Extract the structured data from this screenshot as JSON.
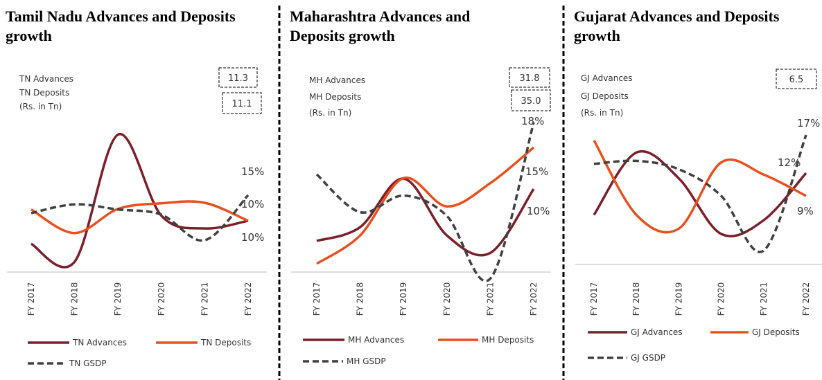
{
  "chart_data": [
    {
      "type": "line",
      "title": "Tamil Nadu Advances and Deposits growth",
      "annotations": [
        {
          "label": "TN Advances",
          "value": 11.3
        },
        {
          "label": "TN Deposits",
          "value": 11.1
        }
      ],
      "unit": "(Rs. in Tn)",
      "categories": [
        "FY 2017",
        "FY 2018",
        "FY 2019",
        "FY 2020",
        "FY 2021",
        "FY 2022"
      ],
      "ylim": [
        0,
        32
      ],
      "series": [
        {
          "name": "TN Advances",
          "color": "#7b1f2a",
          "values": [
            5.5,
            2.0,
            26.8,
            11,
            8.5,
            10
          ],
          "value_labels": [
            null,
            null,
            null,
            null,
            null,
            "10%"
          ]
        },
        {
          "name": "TN Deposits",
          "color": "#e8501e",
          "values": [
            12.2,
            7.6,
            12.3,
            13.4,
            13.5,
            10
          ],
          "value_labels": [
            null,
            null,
            null,
            null,
            null,
            "10%"
          ]
        },
        {
          "name": "TN GSDP",
          "color": "#404040",
          "dashed": true,
          "values": [
            11.5,
            13.2,
            12.2,
            11.2,
            6.2,
            15
          ],
          "value_labels": [
            null,
            null,
            null,
            null,
            null,
            "15%"
          ]
        }
      ]
    },
    {
      "type": "line",
      "title": "Maharashtra Advances and Deposits growth",
      "annotations": [
        {
          "label": "MH Advances",
          "value": 31.8
        },
        {
          "label": "MH Deposits",
          "value": 35,
          "value_label": "35.0"
        }
      ],
      "unit": "(Rs. in Tn)",
      "categories": [
        "FY 2017",
        "FY 2018",
        "FY 2019",
        "FY 2020",
        "FY 2021",
        "FY 2022"
      ],
      "ylim": [
        -2,
        20
      ],
      "series": [
        {
          "name": "MH Advances",
          "color": "#7b1f2a",
          "values": [
            3.75,
            5.4,
            11.25,
            4.4,
            2.3,
            10
          ],
          "value_labels": [
            null,
            null,
            null,
            null,
            null,
            "10%"
          ]
        },
        {
          "name": "MH Deposits",
          "color": "#e8501e",
          "values": [
            1.0,
            4.4,
            11.3,
            7.9,
            10.7,
            15
          ],
          "value_labels": [
            null,
            null,
            null,
            null,
            null,
            "15%"
          ]
        },
        {
          "name": "MH GSDP",
          "color": "#404040",
          "dashed": true,
          "values": [
            11.75,
            7.2,
            9.2,
            6.75,
            -0.8,
            18
          ],
          "value_labels": [
            null,
            null,
            null,
            null,
            null,
            "18%"
          ]
        }
      ]
    },
    {
      "type": "line",
      "title": "Gujarat Advances and Deposits growth",
      "annotations": [
        {
          "label": "GJ Advances",
          "value": 6.5
        },
        {
          "label": "GJ Deposits"
        }
      ],
      "unit": "(Rs. in Tn)",
      "categories": [
        "FY 2017",
        "FY 2018",
        "FY 2019",
        "FY 2020",
        "FY 2021",
        "FY 2022"
      ],
      "ylim": [
        -1,
        20
      ],
      "series": [
        {
          "name": "GJ Advances",
          "color": "#7b1f2a",
          "values": [
            6.5,
            14.7,
            11.3,
            4.0,
            5.8,
            12
          ],
          "value_labels": [
            null,
            null,
            null,
            null,
            null,
            "12%"
          ]
        },
        {
          "name": "GJ Deposits",
          "color": "#e8501e",
          "values": [
            16.3,
            6.5,
            4.7,
            13.4,
            11.8,
            9
          ],
          "value_labels": [
            null,
            null,
            null,
            null,
            null,
            "9%"
          ]
        },
        {
          "name": "GJ GSDP",
          "color": "#404040",
          "dashed": true,
          "values": [
            13.2,
            13.6,
            12.5,
            9,
            1.8,
            17
          ],
          "value_labels": [
            null,
            null,
            null,
            null,
            null,
            "17%"
          ]
        }
      ]
    }
  ]
}
